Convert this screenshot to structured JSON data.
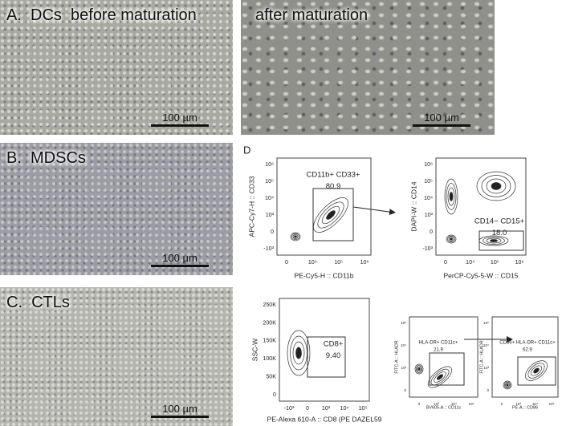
{
  "panels": [
    {
      "label": "A.  DCs  before maturation",
      "scale_bar": "100 µm"
    },
    {
      "label": "after maturation",
      "scale_bar": "100 µm"
    },
    {
      "label": "B.  MDSCs",
      "scale_bar": "100 µm"
    },
    {
      "label": "C.  CTLs",
      "scale_bar": "100 µm"
    }
  ],
  "flow": {
    "label": "D",
    "plots": [
      {
        "y_label": "APC-Cy7-H :: CD33",
        "x_label": "PE-Cy5-H :: CD11b",
        "y_ticks": [
          "10⁶",
          "10⁵",
          "10⁴",
          "10³",
          "0",
          "-10³"
        ],
        "x_ticks": [
          "0",
          "10⁴",
          "10⁵",
          "10⁶"
        ],
        "gate_label": "CD11b+ CD33+",
        "gate_value": "80.9"
      },
      {
        "y_label": "DAPI-W :: CD14",
        "x_label": "PerCP-Cy5-5-W :: CD15",
        "y_ticks": [
          "10⁶",
          "10⁵",
          "10⁴",
          "10³",
          "0",
          "-10³"
        ],
        "x_ticks": [
          "0",
          "10⁴",
          "10⁵",
          "10⁶"
        ],
        "gate_label": "CD14− CD15+",
        "gate_value": "18.0"
      },
      {
        "y_label": "SSC-W",
        "x_label": "PE-Alexa 610-A :: CD8 (PE DAZEL59",
        "y_ticks": [
          "250K",
          "200K",
          "150K",
          "100K",
          "50K",
          "0"
        ],
        "x_ticks": [
          "-10³",
          "0",
          "10³",
          "10⁴",
          "10⁵"
        ],
        "gate_label": "CD8+",
        "gate_value": "9.40"
      },
      {
        "y_label": "FITC-A :: HLADR",
        "x_label": "BV605-A :: CD11c",
        "y_ticks": [
          "10⁵",
          "10⁴",
          "10³",
          "0"
        ],
        "x_ticks": [
          "0",
          "10³",
          "10⁴",
          "10⁵"
        ],
        "gate_label": "HLA-DR+ CD11c+",
        "gate_value": "21.9"
      },
      {
        "y_label": "FITC-A :: HLADR",
        "x_label": "PE-A :: CD86",
        "y_ticks": [
          "10⁵",
          "10⁴",
          "10³",
          "0"
        ],
        "x_ticks": [
          "0",
          "10³",
          "10⁴",
          "10⁵"
        ],
        "gate_label": "CD86+ HLA-DR+ CD11c+",
        "gate_value": "62.9"
      }
    ]
  }
}
